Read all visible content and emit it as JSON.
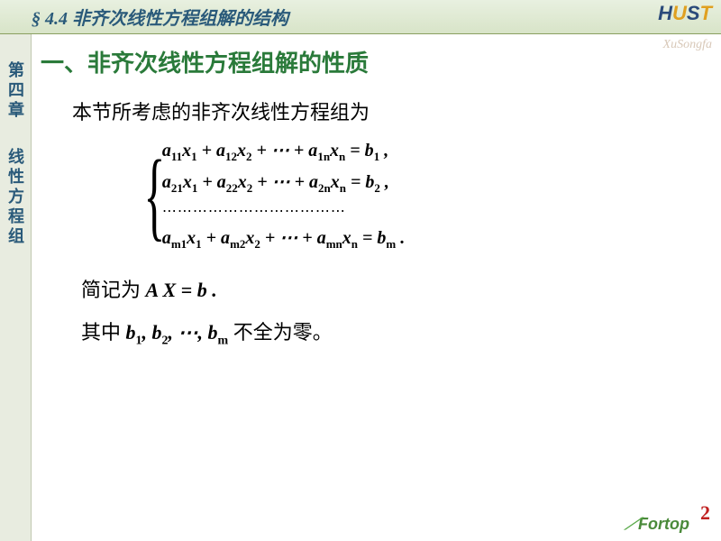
{
  "header": {
    "section_symbol": "§",
    "section_number": "4.4",
    "title": "非齐次线性方程组解的结构"
  },
  "logo": {
    "text": "HUST"
  },
  "watermark": "XuSongfa",
  "sidebar": {
    "chapter": "第四章",
    "topic": "线性方程组"
  },
  "content": {
    "section_heading": "一、非齐次线性方程组解的性质",
    "intro": "本节所考虑的非齐次线性方程组为",
    "equations": {
      "rows": [
        {
          "coeffs": [
            "a₁₁",
            "a₁₂",
            "a₁ₙ"
          ],
          "vars": [
            "x₁",
            "x₂",
            "xₙ"
          ],
          "rhs": "b₁"
        },
        {
          "coeffs": [
            "a₂₁",
            "a₂₂",
            "a₂ₙ"
          ],
          "vars": [
            "x₁",
            "x₂",
            "xₙ"
          ],
          "rhs": "b₂"
        },
        {
          "coeffs": [
            "aₘ₁",
            "aₘ₂",
            "aₘₙ"
          ],
          "vars": [
            "x₁",
            "x₂",
            "xₙ"
          ],
          "rhs": "bₘ"
        }
      ],
      "eq1": "a₁₁x₁ + a₁₂x₂ + ⋯ + a₁ₙxₙ = b₁ ,",
      "eq2": "a₂₁x₁ + a₂₂x₂ + ⋯ + a₂ₙxₙ = b₂ ,",
      "dots": "⋯⋯⋯⋯⋯⋯⋯⋯⋯⋯⋯⋯",
      "eq3": "aₘ₁x₁ + aₘ₂x₂ + ⋯ + aₘₙxₙ = bₘ ."
    },
    "short_label": "简记为 ",
    "short_form": "A X = b .",
    "where_label": "其中 ",
    "where_math": "b₁, b₂, ⋯, bₘ",
    "where_tail": " 不全为零。"
  },
  "footer": {
    "brand": "Fortop",
    "page": "2"
  },
  "colors": {
    "header_bg_top": "#e8f0e0",
    "header_bg_bottom": "#d8e4c8",
    "header_text": "#2a5a7a",
    "sidebar_bg": "#e8ece0",
    "section_title": "#2a7a3a",
    "page_num": "#c02020",
    "footer_brand": "#4a8a3a"
  },
  "typography": {
    "header_fontsize": 20,
    "section_title_fontsize": 26,
    "body_fontsize": 22,
    "equation_fontsize": 20,
    "note_fontsize": 22,
    "page_num_fontsize": 22
  }
}
